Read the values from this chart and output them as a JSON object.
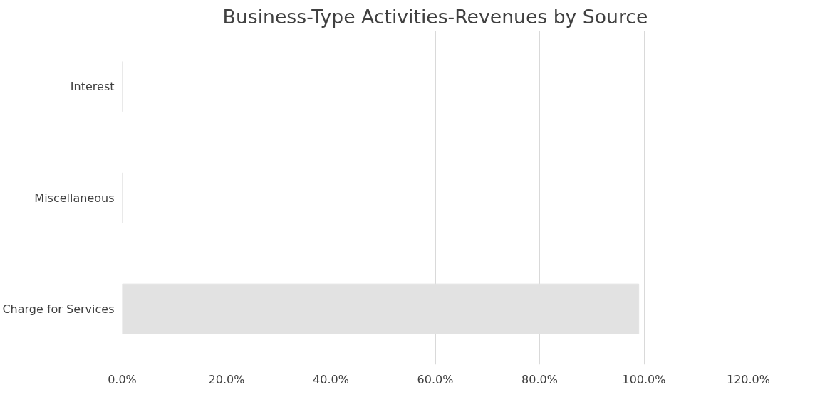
{
  "chart_data": {
    "type": "bar",
    "orientation": "horizontal",
    "title": "Business-Type Activities-Revenues by Source",
    "categories": [
      "Interest",
      "Miscellaneous",
      "Charge for Services"
    ],
    "values": [
      0,
      0,
      0.99
    ],
    "color": "#e2e2e2",
    "xlim": [
      0,
      1.2
    ],
    "xticks": [
      {
        "value": 0,
        "label": "0.0%"
      },
      {
        "value": 0.2,
        "label": "20.0%"
      },
      {
        "value": 0.4,
        "label": "40.0%"
      },
      {
        "value": 0.6,
        "label": "60.0%"
      },
      {
        "value": 0.8,
        "label": "80.0%"
      },
      {
        "value": 1.0,
        "label": "100.0%"
      },
      {
        "value": 1.2,
        "label": "120.0%"
      }
    ],
    "grid": "x"
  }
}
